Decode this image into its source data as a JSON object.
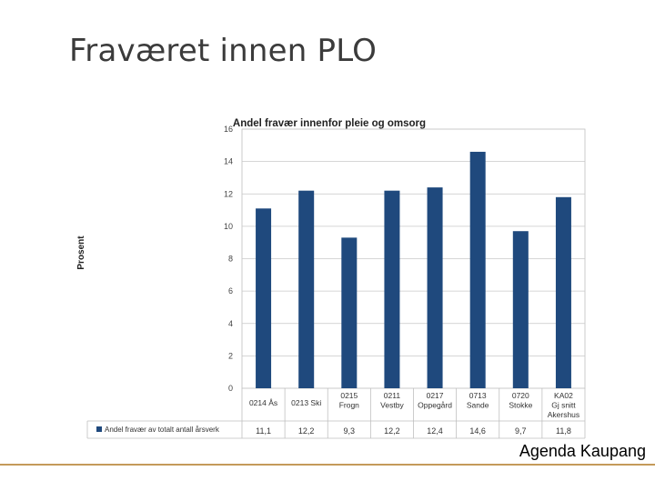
{
  "slide": {
    "title": "Fraværet innen PLO",
    "footer": "Agenda Kaupang",
    "footer_color": "#c49a5a"
  },
  "chart_data": {
    "type": "bar",
    "title": "Andel fravær innenfor pleie og omsorg",
    "ylabel": "Prosent",
    "xlabel": "",
    "ylim": [
      0,
      16
    ],
    "yticks": [
      "0",
      "2",
      "4",
      "6",
      "8",
      "10",
      "12",
      "14",
      "16"
    ],
    "grid": true,
    "legend_position": "table-row-left",
    "bar_color": "#1f497d",
    "categories": [
      [
        "0214 Ås"
      ],
      [
        "0213 Ski"
      ],
      [
        "0215",
        "Frogn"
      ],
      [
        "0211",
        "Vestby"
      ],
      [
        "0217",
        "Oppegård"
      ],
      [
        "0713",
        "Sande"
      ],
      [
        "0720",
        "Stokke"
      ],
      [
        "KA02",
        "Gj snitt",
        "Akershus"
      ]
    ],
    "series": [
      {
        "name": "Andel fravær av totalt antall årsverk",
        "values": [
          11.1,
          12.2,
          9.3,
          12.2,
          12.4,
          14.6,
          9.7,
          11.8
        ],
        "value_labels": [
          "11,1",
          "12,2",
          "9,3",
          "12,2",
          "12,4",
          "14,6",
          "9,7",
          "11,8"
        ]
      }
    ]
  }
}
